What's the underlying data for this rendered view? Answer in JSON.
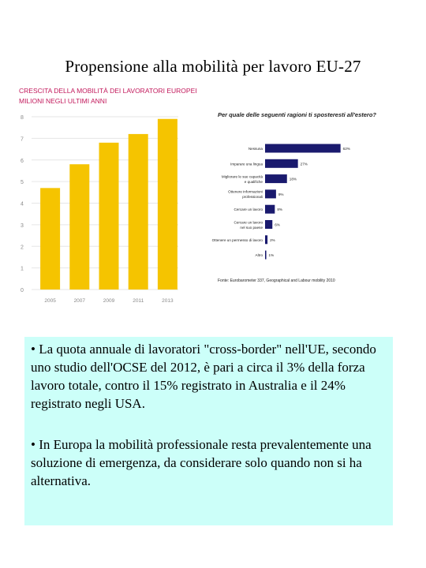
{
  "slide": {
    "title": "Propensione alla mobilità per lavoro EU-27"
  },
  "chart_data": [
    {
      "type": "bar",
      "title_lines": [
        "CRESCITA DELLA MOBILITÀ DEI LAVORATORI EUROPEI IN",
        "MILIONI NEGLI ULTIMI ANNI"
      ],
      "categories": [
        "2005",
        "2007",
        "2009",
        "2011",
        "2013"
      ],
      "values": [
        4.7,
        5.8,
        6.8,
        7.2,
        7.9
      ],
      "ylim": [
        0,
        8
      ],
      "yticks": [
        "0",
        "1",
        "2",
        "3",
        "4",
        "5",
        "6",
        "7",
        "8"
      ],
      "grid": true,
      "colors": {
        "bar": "#f5c400",
        "title": "#c2185b",
        "axis_text": "#888888",
        "grid": "#e6e6e6"
      }
    },
    {
      "type": "bar",
      "orientation": "horizontal",
      "title": "Per quale delle seguenti ragioni ti sposteresti all'estero?",
      "categories": [
        [
          "Nessuna"
        ],
        [
          "Imparare una lingua"
        ],
        [
          "Migliorare le sue capacità",
          "e qualifiche"
        ],
        [
          "Ottenere informazioni",
          "professionali"
        ],
        [
          "Cercare un lavoro"
        ],
        [
          "Cercare un lavoro",
          "nel suo paese"
        ],
        [
          "Ottenere un permesso di lavoro"
        ],
        [
          "Altro"
        ]
      ],
      "values": [
        62,
        27,
        18,
        9,
        8,
        6,
        2,
        1
      ],
      "value_labels": [
        "62%",
        "27%",
        "18%",
        "9%",
        "8%",
        "6%",
        "2%",
        "1%"
      ],
      "xlim": [
        0,
        70
      ],
      "source": "Fonte: Eurobarometer 337, Geographical and Labour mobility 2010",
      "colors": {
        "bar": "#1a1a6e",
        "text": "#222222"
      }
    }
  ],
  "textbox": {
    "p1": "• La quota annuale di lavoratori \"cross-border\" nell'UE, secondo uno studio dell'OCSE del 2012, è pari a circa il 3% della forza lavoro totale, contro il 15% registrato in Australia e il 24% registrato negli USA.",
    "p2": "• In Europa la mobilità professionale resta prevalentemente una soluzione di emergenza, da considerare solo quando non si ha alternativa."
  }
}
